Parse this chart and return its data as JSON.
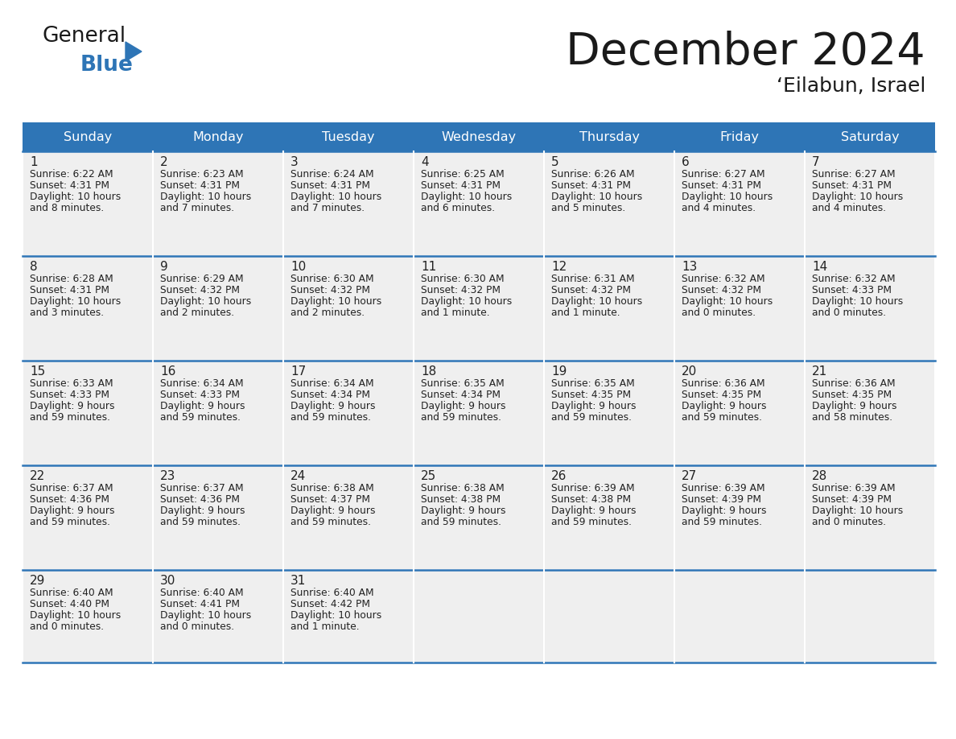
{
  "title": "December 2024",
  "subtitle": "‘Eilabun, Israel",
  "days_of_week": [
    "Sunday",
    "Monday",
    "Tuesday",
    "Wednesday",
    "Thursday",
    "Friday",
    "Saturday"
  ],
  "header_bg": "#2E75B6",
  "header_text": "#FFFFFF",
  "cell_bg_light": "#EFEFEF",
  "cell_bg_white": "#FFFFFF",
  "cell_text": "#222222",
  "border_color": "#2E75B6",
  "title_color": "#1a1a1a",
  "subtitle_color": "#1a1a1a",
  "logo_general_color": "#1a1a1a",
  "logo_blue_color": "#2E75B6",
  "weeks": [
    [
      {
        "day": 1,
        "sunrise": "6:22 AM",
        "sunset": "4:31 PM",
        "daylight_line1": "10 hours",
        "daylight_line2": "and 8 minutes."
      },
      {
        "day": 2,
        "sunrise": "6:23 AM",
        "sunset": "4:31 PM",
        "daylight_line1": "10 hours",
        "daylight_line2": "and 7 minutes."
      },
      {
        "day": 3,
        "sunrise": "6:24 AM",
        "sunset": "4:31 PM",
        "daylight_line1": "10 hours",
        "daylight_line2": "and 7 minutes."
      },
      {
        "day": 4,
        "sunrise": "6:25 AM",
        "sunset": "4:31 PM",
        "daylight_line1": "10 hours",
        "daylight_line2": "and 6 minutes."
      },
      {
        "day": 5,
        "sunrise": "6:26 AM",
        "sunset": "4:31 PM",
        "daylight_line1": "10 hours",
        "daylight_line2": "and 5 minutes."
      },
      {
        "day": 6,
        "sunrise": "6:27 AM",
        "sunset": "4:31 PM",
        "daylight_line1": "10 hours",
        "daylight_line2": "and 4 minutes."
      },
      {
        "day": 7,
        "sunrise": "6:27 AM",
        "sunset": "4:31 PM",
        "daylight_line1": "10 hours",
        "daylight_line2": "and 4 minutes."
      }
    ],
    [
      {
        "day": 8,
        "sunrise": "6:28 AM",
        "sunset": "4:31 PM",
        "daylight_line1": "10 hours",
        "daylight_line2": "and 3 minutes."
      },
      {
        "day": 9,
        "sunrise": "6:29 AM",
        "sunset": "4:32 PM",
        "daylight_line1": "10 hours",
        "daylight_line2": "and 2 minutes."
      },
      {
        "day": 10,
        "sunrise": "6:30 AM",
        "sunset": "4:32 PM",
        "daylight_line1": "10 hours",
        "daylight_line2": "and 2 minutes."
      },
      {
        "day": 11,
        "sunrise": "6:30 AM",
        "sunset": "4:32 PM",
        "daylight_line1": "10 hours",
        "daylight_line2": "and 1 minute."
      },
      {
        "day": 12,
        "sunrise": "6:31 AM",
        "sunset": "4:32 PM",
        "daylight_line1": "10 hours",
        "daylight_line2": "and 1 minute."
      },
      {
        "day": 13,
        "sunrise": "6:32 AM",
        "sunset": "4:32 PM",
        "daylight_line1": "10 hours",
        "daylight_line2": "and 0 minutes."
      },
      {
        "day": 14,
        "sunrise": "6:32 AM",
        "sunset": "4:33 PM",
        "daylight_line1": "10 hours",
        "daylight_line2": "and 0 minutes."
      }
    ],
    [
      {
        "day": 15,
        "sunrise": "6:33 AM",
        "sunset": "4:33 PM",
        "daylight_line1": "9 hours",
        "daylight_line2": "and 59 minutes."
      },
      {
        "day": 16,
        "sunrise": "6:34 AM",
        "sunset": "4:33 PM",
        "daylight_line1": "9 hours",
        "daylight_line2": "and 59 minutes."
      },
      {
        "day": 17,
        "sunrise": "6:34 AM",
        "sunset": "4:34 PM",
        "daylight_line1": "9 hours",
        "daylight_line2": "and 59 minutes."
      },
      {
        "day": 18,
        "sunrise": "6:35 AM",
        "sunset": "4:34 PM",
        "daylight_line1": "9 hours",
        "daylight_line2": "and 59 minutes."
      },
      {
        "day": 19,
        "sunrise": "6:35 AM",
        "sunset": "4:35 PM",
        "daylight_line1": "9 hours",
        "daylight_line2": "and 59 minutes."
      },
      {
        "day": 20,
        "sunrise": "6:36 AM",
        "sunset": "4:35 PM",
        "daylight_line1": "9 hours",
        "daylight_line2": "and 59 minutes."
      },
      {
        "day": 21,
        "sunrise": "6:36 AM",
        "sunset": "4:35 PM",
        "daylight_line1": "9 hours",
        "daylight_line2": "and 58 minutes."
      }
    ],
    [
      {
        "day": 22,
        "sunrise": "6:37 AM",
        "sunset": "4:36 PM",
        "daylight_line1": "9 hours",
        "daylight_line2": "and 59 minutes."
      },
      {
        "day": 23,
        "sunrise": "6:37 AM",
        "sunset": "4:36 PM",
        "daylight_line1": "9 hours",
        "daylight_line2": "and 59 minutes."
      },
      {
        "day": 24,
        "sunrise": "6:38 AM",
        "sunset": "4:37 PM",
        "daylight_line1": "9 hours",
        "daylight_line2": "and 59 minutes."
      },
      {
        "day": 25,
        "sunrise": "6:38 AM",
        "sunset": "4:38 PM",
        "daylight_line1": "9 hours",
        "daylight_line2": "and 59 minutes."
      },
      {
        "day": 26,
        "sunrise": "6:39 AM",
        "sunset": "4:38 PM",
        "daylight_line1": "9 hours",
        "daylight_line2": "and 59 minutes."
      },
      {
        "day": 27,
        "sunrise": "6:39 AM",
        "sunset": "4:39 PM",
        "daylight_line1": "9 hours",
        "daylight_line2": "and 59 minutes."
      },
      {
        "day": 28,
        "sunrise": "6:39 AM",
        "sunset": "4:39 PM",
        "daylight_line1": "10 hours",
        "daylight_line2": "and 0 minutes."
      }
    ],
    [
      {
        "day": 29,
        "sunrise": "6:40 AM",
        "sunset": "4:40 PM",
        "daylight_line1": "10 hours",
        "daylight_line2": "and 0 minutes."
      },
      {
        "day": 30,
        "sunrise": "6:40 AM",
        "sunset": "4:41 PM",
        "daylight_line1": "10 hours",
        "daylight_line2": "and 0 minutes."
      },
      {
        "day": 31,
        "sunrise": "6:40 AM",
        "sunset": "4:42 PM",
        "daylight_line1": "10 hours",
        "daylight_line2": "and 1 minute."
      },
      null,
      null,
      null,
      null
    ]
  ]
}
